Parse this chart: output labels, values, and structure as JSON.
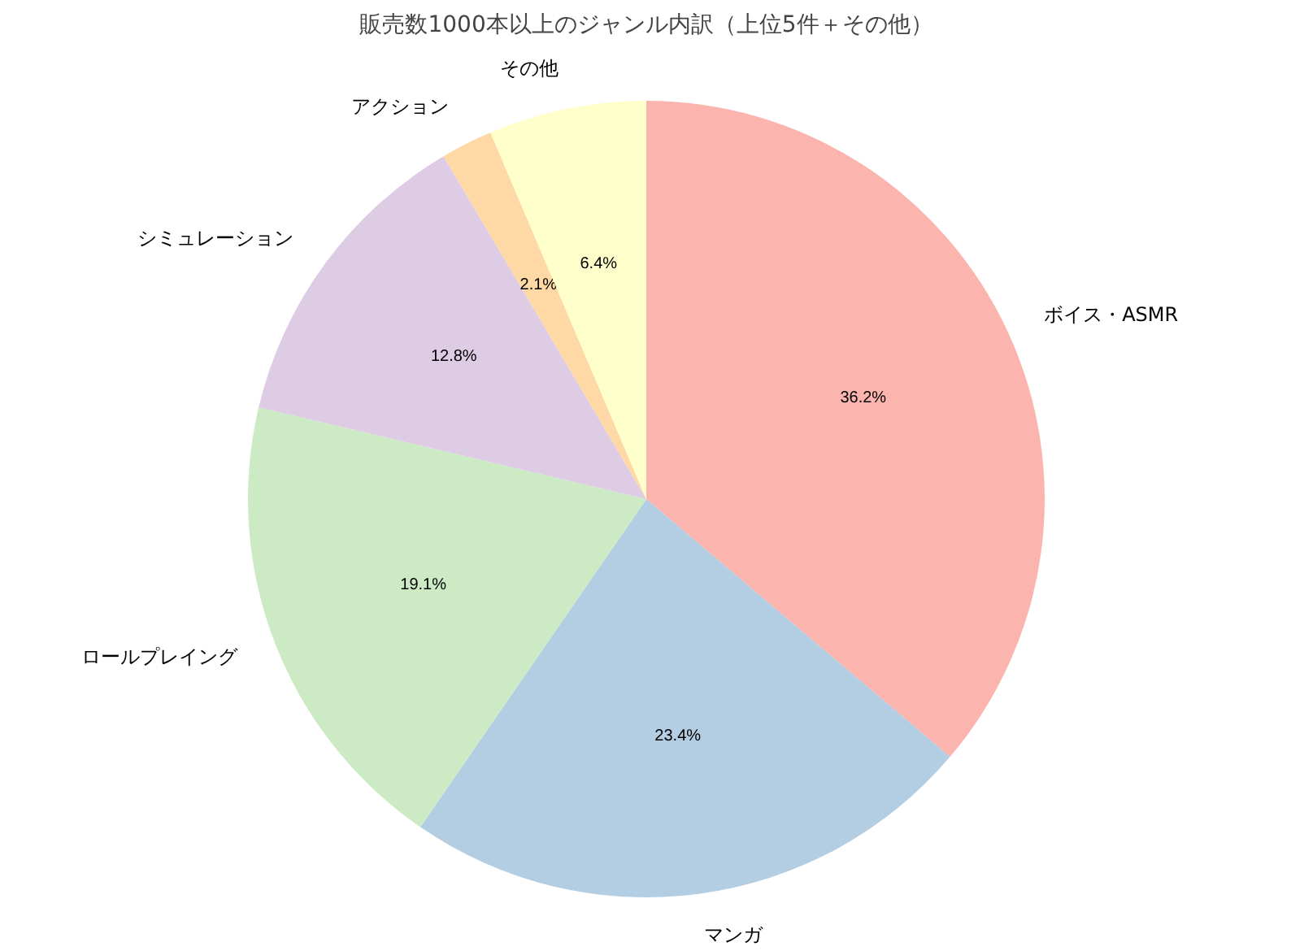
{
  "chart_data": {
    "type": "pie",
    "title": "販売数1000本以上のジャンル内訳（上位5件＋その他）",
    "categories": [
      "ボイス・ASMR",
      "マンガ",
      "ロールプレイング",
      "シミュレーション",
      "アクション",
      "その他"
    ],
    "values": [
      36.2,
      23.4,
      19.1,
      12.8,
      2.1,
      6.4
    ],
    "colors": [
      "#fbb4ae",
      "#b3cde3",
      "#ccebc5",
      "#decbe4",
      "#fed9a6",
      "#ffffcc"
    ],
    "value_labels": [
      "36.2%",
      "23.4%",
      "19.1%",
      "12.8%",
      "2.1%",
      "6.4%"
    ]
  }
}
